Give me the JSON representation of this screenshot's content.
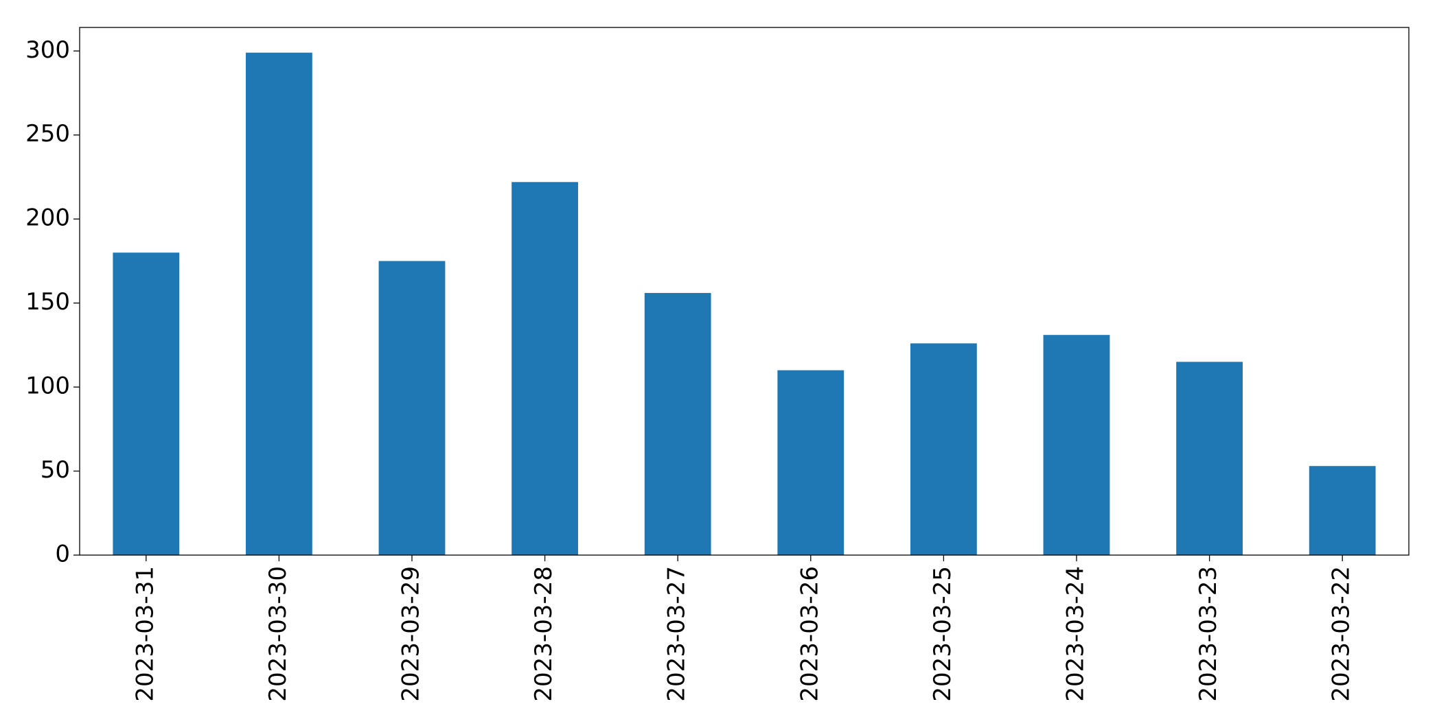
{
  "chart_data": {
    "type": "bar",
    "categories": [
      "2023-03-31",
      "2023-03-30",
      "2023-03-29",
      "2023-03-28",
      "2023-03-27",
      "2023-03-26",
      "2023-03-25",
      "2023-03-24",
      "2023-03-23",
      "2023-03-22"
    ],
    "values": [
      180,
      299,
      175,
      222,
      156,
      110,
      126,
      131,
      115,
      53
    ],
    "color": "#1f77b4",
    "ylim": [
      0,
      314
    ],
    "yticks": [
      0,
      50,
      100,
      150,
      200,
      250,
      300
    ],
    "grid": false
  }
}
